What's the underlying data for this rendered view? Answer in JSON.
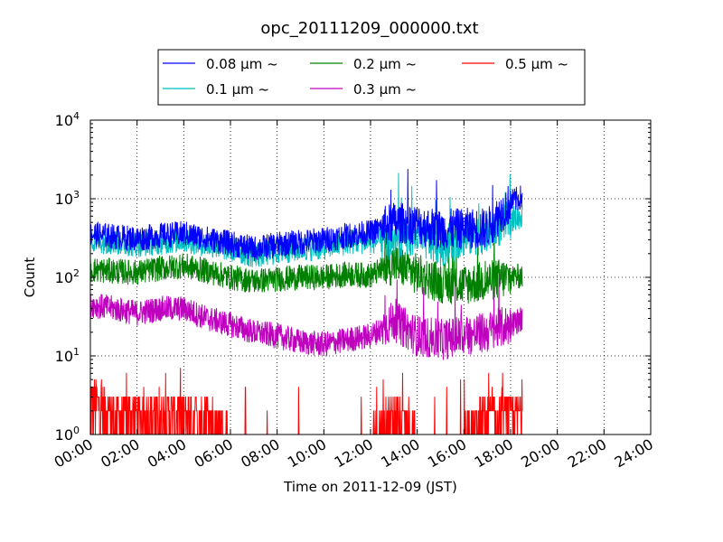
{
  "chart_data": {
    "type": "line",
    "title": "opc_20111209_000000.txt",
    "xlabel": "Time on 2011-12-09 (JST)",
    "ylabel": "Count",
    "yscale": "log",
    "ylim": [
      1,
      10000
    ],
    "xlim_hours": [
      0,
      24
    ],
    "x_tick_labels": [
      "00:00",
      "02:00",
      "04:00",
      "06:00",
      "08:00",
      "10:00",
      "12:00",
      "14:00",
      "16:00",
      "18:00",
      "20:00",
      "22:00",
      "24:00"
    ],
    "y_tick_labels": [
      {
        "base": "10",
        "exp": "0"
      },
      {
        "base": "10",
        "exp": "1"
      },
      {
        "base": "10",
        "exp": "2"
      },
      {
        "base": "10",
        "exp": "3"
      },
      {
        "base": "10",
        "exp": "4"
      }
    ],
    "grid": true,
    "legend_position": "top",
    "series": [
      {
        "name": "0.08 μm ~",
        "color": "#0000ff",
        "x": [
          0,
          1,
          2,
          3,
          4,
          5,
          6,
          7,
          8,
          9,
          10,
          11,
          12,
          13,
          14,
          15,
          16,
          17,
          18,
          18.5
        ],
        "y": [
          360,
          330,
          310,
          340,
          360,
          310,
          270,
          230,
          260,
          280,
          300,
          340,
          370,
          500,
          470,
          400,
          420,
          420,
          900,
          1050
        ]
      },
      {
        "name": "0.1 μm ~",
        "color": "#00bfbf",
        "x": [
          0,
          1,
          2,
          3,
          4,
          5,
          6,
          7,
          8,
          9,
          10,
          11,
          12,
          13,
          14,
          15,
          16,
          17,
          18,
          18.5
        ],
        "y": [
          300,
          280,
          260,
          280,
          300,
          260,
          230,
          190,
          210,
          230,
          240,
          280,
          290,
          300,
          330,
          250,
          330,
          360,
          550,
          600
        ]
      },
      {
        "name": "0.2 μm ~",
        "color": "#008000",
        "x": [
          0,
          1,
          2,
          3,
          4,
          5,
          6,
          7,
          8,
          9,
          10,
          11,
          12,
          13,
          14,
          15,
          16,
          17,
          18,
          18.5
        ],
        "y": [
          125,
          120,
          115,
          130,
          140,
          120,
          100,
          90,
          95,
          100,
          100,
          110,
          105,
          150,
          110,
          85,
          80,
          90,
          100,
          105
        ]
      },
      {
        "name": "0.3 μm ~",
        "color": "#bf00bf",
        "x": [
          0,
          1,
          2,
          3,
          4,
          5,
          6,
          7,
          8,
          9,
          10,
          11,
          12,
          13,
          14,
          15,
          16,
          17,
          18,
          18.5
        ],
        "y": [
          45,
          40,
          35,
          40,
          40,
          30,
          25,
          20,
          18,
          15,
          14,
          16,
          18,
          28,
          18,
          16,
          18,
          20,
          25,
          30
        ]
      },
      {
        "name": "0.5 μm ~",
        "color": "#ff0000",
        "x": [
          0,
          1,
          2,
          3,
          4,
          5,
          6,
          7,
          8,
          9,
          10,
          11,
          12,
          13,
          14,
          15,
          16,
          17,
          18,
          18.5
        ],
        "y": [
          3,
          2,
          2,
          2,
          2,
          2,
          1,
          1,
          1,
          1,
          1,
          1,
          1,
          2,
          1,
          1,
          1,
          2,
          2,
          2
        ]
      }
    ]
  }
}
